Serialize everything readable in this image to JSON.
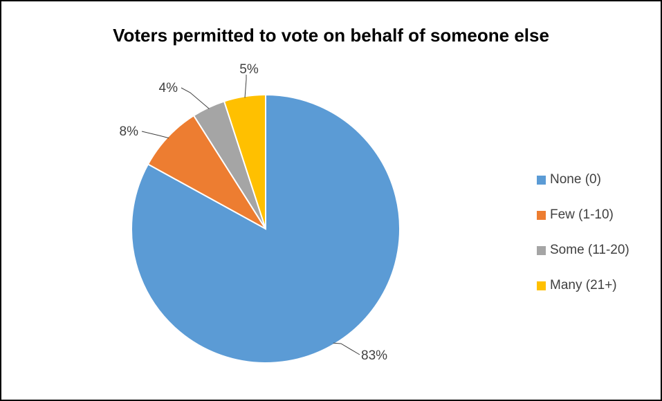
{
  "chart_data": {
    "type": "pie",
    "title": "Voters permitted to vote on behalf of someone else",
    "categories": [
      "None (0)",
      "Few (1-10)",
      "Some (11-20)",
      "Many (21+)"
    ],
    "values": [
      83,
      8,
      4,
      5
    ],
    "data_labels": [
      "83%",
      "8%",
      "4%",
      "5%"
    ],
    "colors": [
      "#5B9BD5",
      "#ED7D31",
      "#A5A5A5",
      "#FFC000"
    ],
    "legend_position": "right"
  }
}
